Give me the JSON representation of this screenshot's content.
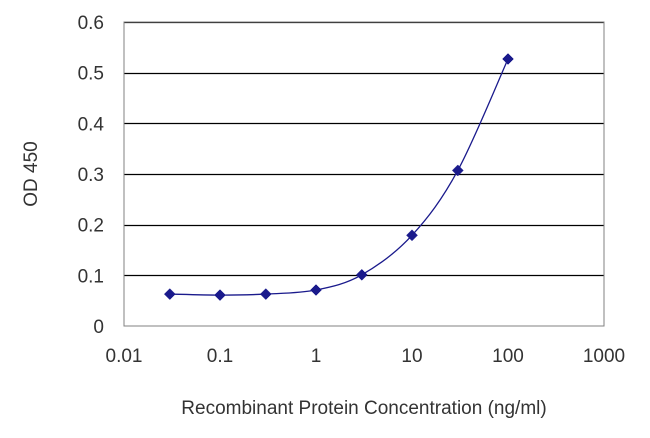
{
  "chart_data": {
    "type": "line",
    "title": "",
    "xlabel": "Recombinant Protein Concentration (ng/ml)",
    "ylabel": "OD 450",
    "x_scale": "log",
    "xlim": [
      0.01,
      1000
    ],
    "ylim": [
      0,
      0.6
    ],
    "x_ticks": [
      0.01,
      0.1,
      1,
      10,
      100,
      1000
    ],
    "x_tick_labels": [
      "0.01",
      "0.1",
      "1",
      "10",
      "100",
      "1000"
    ],
    "y_ticks": [
      0,
      0.1,
      0.2,
      0.3,
      0.4,
      0.5,
      0.6
    ],
    "y_tick_labels": [
      "0",
      "0.1",
      "0.2",
      "0.3",
      "0.4",
      "0.5",
      "0.6"
    ],
    "grid": true,
    "legend": "none",
    "series": [
      {
        "x": [
          0.03,
          0.1,
          0.3,
          1,
          3,
          10,
          30,
          100
        ],
        "y": [
          0.063,
          0.061,
          0.063,
          0.071,
          0.101,
          0.179,
          0.307,
          0.527
        ],
        "color": "#1a1a8c",
        "marker": "diamond"
      }
    ]
  }
}
